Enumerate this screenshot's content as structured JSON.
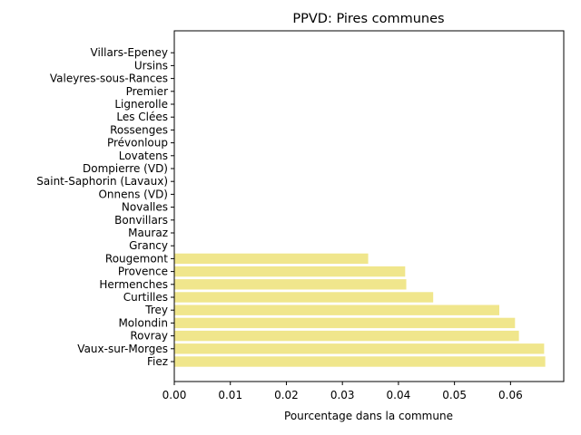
{
  "chart_data": {
    "type": "bar",
    "orientation": "horizontal",
    "title": "PPVD: Pires communes",
    "xlabel": "Pourcentage dans la commune",
    "ylabel": "",
    "xlim": [
      0,
      0.0695
    ],
    "xticks": [
      "0.00",
      "0.01",
      "0.02",
      "0.03",
      "0.04",
      "0.05",
      "0.06"
    ],
    "xtick_values": [
      0,
      0.01,
      0.02,
      0.03,
      0.04,
      0.05,
      0.06
    ],
    "bar_color": "#f0e68c",
    "grid": false,
    "categories": [
      "Fiez",
      "Vaux-sur-Morges",
      "Rovray",
      "Molondin",
      "Trey",
      "Curtilles",
      "Hermenches",
      "Provence",
      "Rougemont",
      "Grancy",
      "Mauraz",
      "Bonvillars",
      "Novalles",
      "Onnens (VD)",
      "Saint-Saphorin (Lavaux)",
      "Dompierre (VD)",
      "Lovatens",
      "Prévonloup",
      "Rossenges",
      "Les Clées",
      "Lignerolle",
      "Premier",
      "Valeyres-sous-Rances",
      "Ursins",
      "Villars-Epeney"
    ],
    "values": [
      0.0662,
      0.066,
      0.0615,
      0.0608,
      0.058,
      0.0462,
      0.0414,
      0.0412,
      0.0346,
      0,
      0,
      0,
      0,
      0,
      0,
      0,
      0,
      0,
      0,
      0,
      0,
      0,
      0,
      0,
      0
    ]
  }
}
